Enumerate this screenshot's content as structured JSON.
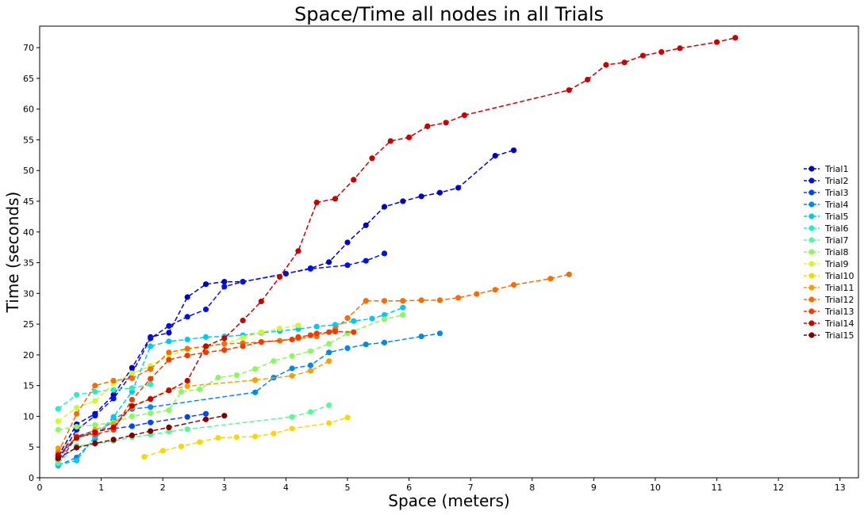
{
  "chart_data": {
    "type": "line",
    "title": "Space/Time all nodes in all Trials",
    "xlabel": "Space (meters)",
    "ylabel": "Time (seconds)",
    "xlim": [
      0,
      13.3
    ],
    "ylim": [
      0,
      73.5
    ],
    "xticks": [
      0,
      1,
      2,
      3,
      4,
      5,
      6,
      7,
      8,
      9,
      10,
      11,
      12,
      13
    ],
    "yticks": [
      0,
      5,
      10,
      15,
      20,
      25,
      30,
      35,
      40,
      45,
      50,
      55,
      60,
      65,
      70
    ],
    "grid": false,
    "legend_position": "center-right",
    "line_style": "dashed",
    "marker": "circle",
    "series": [
      {
        "name": "Trial1",
        "color": "#0000c4",
        "x": [
          0.3,
          0.6,
          0.9,
          1.2,
          1.5,
          1.8,
          2.1,
          2.4,
          2.7,
          3.0,
          3.3,
          4.0,
          4.4,
          4.7,
          5.0,
          5.3,
          5.6,
          5.9,
          6.2,
          6.5,
          6.8,
          7.4,
          7.7
        ],
        "y": [
          3.5,
          8.7,
          10.4,
          13.5,
          17.9,
          22.9,
          23.6,
          29.4,
          31.5,
          31.9,
          31.9,
          33.2,
          34.1,
          35.1,
          38.3,
          41.1,
          44.1,
          45.0,
          45.8,
          46.4,
          47.2,
          52.4,
          53.3
        ]
      },
      {
        "name": "Trial2",
        "color": "#0010f0",
        "x": [
          0.3,
          0.6,
          0.9,
          1.2,
          1.5,
          1.8,
          2.1,
          2.4,
          2.7,
          3.0,
          3.3,
          4.4,
          5.0,
          5.3,
          5.6
        ],
        "y": [
          3.0,
          7.8,
          10.1,
          12.9,
          17.0,
          22.7,
          24.7,
          26.2,
          27.4,
          31.1,
          31.9,
          34.0,
          34.6,
          35.3,
          36.5
        ]
      },
      {
        "name": "Trial3",
        "color": "#0044f8",
        "x": [
          0.3,
          0.6,
          0.9,
          1.2,
          1.5,
          1.8,
          2.4,
          2.7
        ],
        "y": [
          2.3,
          6.7,
          7.7,
          8.0,
          8.4,
          9.0,
          9.9,
          10.4
        ]
      },
      {
        "name": "Trial4",
        "color": "#0088f0",
        "x": [
          0.3,
          0.6,
          0.9,
          1.2,
          1.5,
          1.8,
          3.5,
          3.8,
          4.1,
          4.4,
          4.7,
          5.0,
          5.3,
          5.6,
          6.2,
          6.5
        ],
        "y": [
          2.0,
          3.3,
          6.4,
          9.5,
          11.2,
          11.5,
          13.9,
          16.3,
          17.8,
          18.3,
          20.4,
          21.1,
          21.7,
          22.0,
          23.0,
          23.5
        ]
      },
      {
        "name": "Trial5",
        "color": "#00c8f8",
        "x": [
          0.3,
          0.6,
          0.9,
          1.2,
          1.5,
          1.8,
          2.1,
          2.4,
          2.7,
          3.0,
          3.3,
          3.6,
          3.9,
          4.2,
          4.5,
          4.8,
          5.1,
          5.4,
          5.6,
          5.9
        ],
        "y": [
          2.1,
          2.8,
          6.7,
          9.9,
          14.0,
          21.4,
          22.2,
          22.5,
          22.9,
          23.0,
          23.2,
          23.6,
          23.9,
          24.2,
          24.6,
          24.9,
          25.5,
          25.9,
          26.5,
          27.7
        ]
      },
      {
        "name": "Trial6",
        "color": "#22f0c8",
        "x": [
          0.3,
          0.6,
          0.9,
          1.2,
          1.5,
          1.8
        ],
        "y": [
          11.2,
          13.5,
          14.0,
          14.3,
          14.6,
          15.2
        ]
      },
      {
        "name": "Trial7",
        "color": "#58f898",
        "x": [
          0.3,
          0.6,
          0.9,
          1.2,
          1.5,
          1.8,
          2.1,
          2.4,
          4.1,
          4.4,
          4.7
        ],
        "y": [
          2.4,
          5.2,
          5.5,
          6.0,
          6.6,
          7.0,
          7.5,
          7.9,
          9.9,
          10.7,
          11.8
        ]
      },
      {
        "name": "Trial8",
        "color": "#8cf860",
        "x": [
          0.3,
          0.6,
          0.9,
          1.2,
          1.5,
          1.8,
          2.1,
          2.3,
          2.6,
          2.9,
          3.2,
          3.5,
          3.8,
          4.1,
          4.4,
          4.7,
          5.0,
          5.6,
          5.9
        ],
        "y": [
          7.8,
          8.3,
          8.6,
          9.0,
          10.0,
          10.5,
          11.0,
          14.0,
          14.4,
          16.3,
          16.7,
          17.7,
          19.0,
          19.8,
          20.6,
          21.8,
          23.5,
          25.8,
          26.5
        ]
      },
      {
        "name": "Trial9",
        "color": "#d0f82c",
        "x": [
          0.3,
          0.6,
          0.9,
          1.2,
          1.5,
          1.8,
          2.1,
          2.4,
          2.7,
          3.0,
          3.3,
          3.6,
          3.9,
          4.2
        ],
        "y": [
          9.2,
          11.4,
          12.5,
          15.4,
          17.0,
          18.2,
          19.9,
          20.9,
          21.3,
          21.8,
          22.8,
          23.7,
          24.3,
          24.8
        ]
      },
      {
        "name": "Trial10",
        "color": "#f8d800",
        "x": [
          1.7,
          2.0,
          2.3,
          2.6,
          2.9,
          3.2,
          3.5,
          3.8,
          4.1,
          4.7,
          5.0
        ],
        "y": [
          3.4,
          4.4,
          5.1,
          5.8,
          6.5,
          6.6,
          6.7,
          7.2,
          8.0,
          8.9,
          9.8
        ]
      },
      {
        "name": "Trial11",
        "color": "#f8a000",
        "x": [
          0.3,
          0.6,
          0.9,
          1.2,
          1.5,
          1.8,
          2.1,
          2.4,
          3.5,
          4.1,
          4.4,
          4.7
        ],
        "y": [
          4.8,
          6.4,
          7.8,
          8.8,
          11.5,
          12.9,
          14.3,
          14.9,
          15.9,
          16.6,
          17.4,
          19.0
        ]
      },
      {
        "name": "Trial12",
        "color": "#f86c00",
        "x": [
          0.3,
          0.6,
          0.9,
          1.2,
          1.5,
          1.8,
          2.1,
          2.4,
          2.7,
          3.0,
          3.3,
          3.6,
          3.9,
          4.2,
          4.5,
          4.8,
          5.0,
          5.3,
          5.6,
          5.9,
          6.2,
          6.5,
          6.8,
          7.1,
          7.4,
          7.7,
          8.3,
          8.6
        ],
        "y": [
          4.1,
          10.4,
          15.0,
          15.8,
          16.2,
          17.7,
          20.4,
          21.0,
          21.4,
          21.8,
          21.9,
          22.1,
          22.3,
          22.7,
          23.0,
          24.2,
          26.0,
          28.8,
          28.8,
          28.8,
          28.9,
          28.9,
          29.3,
          29.9,
          30.6,
          31.4,
          32.4,
          33.1
        ]
      },
      {
        "name": "Trial13",
        "color": "#f03c00",
        "x": [
          0.3,
          0.6,
          0.9,
          1.2,
          1.5,
          1.8,
          2.1,
          2.4,
          2.7,
          3.0,
          3.3,
          3.6,
          4.1,
          4.2,
          4.4,
          4.5,
          4.7,
          4.8,
          5.1
        ],
        "y": [
          3.1,
          6.7,
          7.1,
          7.8,
          12.7,
          16.1,
          19.2,
          19.9,
          20.4,
          20.8,
          21.4,
          22.1,
          22.5,
          22.9,
          23.2,
          23.5,
          23.7,
          23.8,
          23.7
        ]
      },
      {
        "name": "Trial14",
        "color": "#c80000",
        "x": [
          0.3,
          0.6,
          0.9,
          1.2,
          1.5,
          1.8,
          2.1,
          2.4,
          2.7,
          3.0,
          3.3,
          3.6,
          3.9,
          4.2,
          4.5,
          4.8,
          5.1,
          5.4,
          5.7,
          6.0,
          6.3,
          6.6,
          6.9,
          8.6,
          8.9,
          9.2,
          9.5,
          9.8,
          10.1,
          10.4,
          11.0,
          11.3
        ],
        "y": [
          3.7,
          6.5,
          7.4,
          8.2,
          11.7,
          12.8,
          14.2,
          15.8,
          21.4,
          22.7,
          25.6,
          28.7,
          32.7,
          36.9,
          44.8,
          45.4,
          48.5,
          52.0,
          54.8,
          55.4,
          57.2,
          57.8,
          59.0,
          63.1,
          64.8,
          67.2,
          67.6,
          68.7,
          69.3,
          69.9,
          70.9,
          71.6
        ]
      },
      {
        "name": "Trial15",
        "color": "#800000",
        "x": [
          0.3,
          0.6,
          0.9,
          1.2,
          1.5,
          1.8,
          2.1,
          2.7,
          3.0
        ],
        "y": [
          3.2,
          4.9,
          5.6,
          6.2,
          6.9,
          7.6,
          8.2,
          9.5,
          10.1
        ]
      }
    ]
  }
}
